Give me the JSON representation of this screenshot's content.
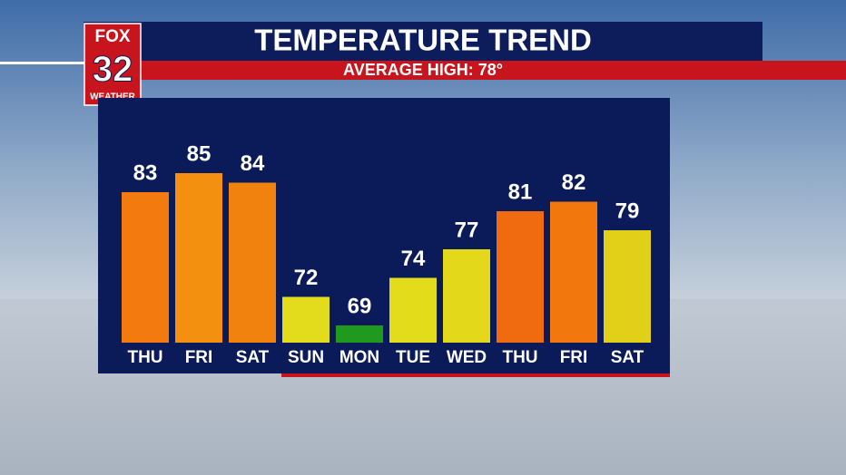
{
  "logo": {
    "brand": "FOX",
    "number": "32",
    "label": "WEATHER"
  },
  "chart_data": {
    "type": "bar",
    "title": "TEMPERATURE TREND",
    "subtitle": "AVERAGE HIGH: 78°",
    "categories": [
      "THU",
      "FRI",
      "SAT",
      "SUN",
      "MON",
      "TUE",
      "WED",
      "THU",
      "FRI",
      "SAT"
    ],
    "values": [
      83,
      85,
      84,
      72,
      69,
      74,
      77,
      81,
      82,
      79
    ],
    "colors": [
      "#f27a0e",
      "#f3900f",
      "#f2820e",
      "#e2dc1c",
      "#1f9a1f",
      "#e3dc1a",
      "#e4d81a",
      "#f06a10",
      "#f2780e",
      "#e2cf18"
    ]
  }
}
